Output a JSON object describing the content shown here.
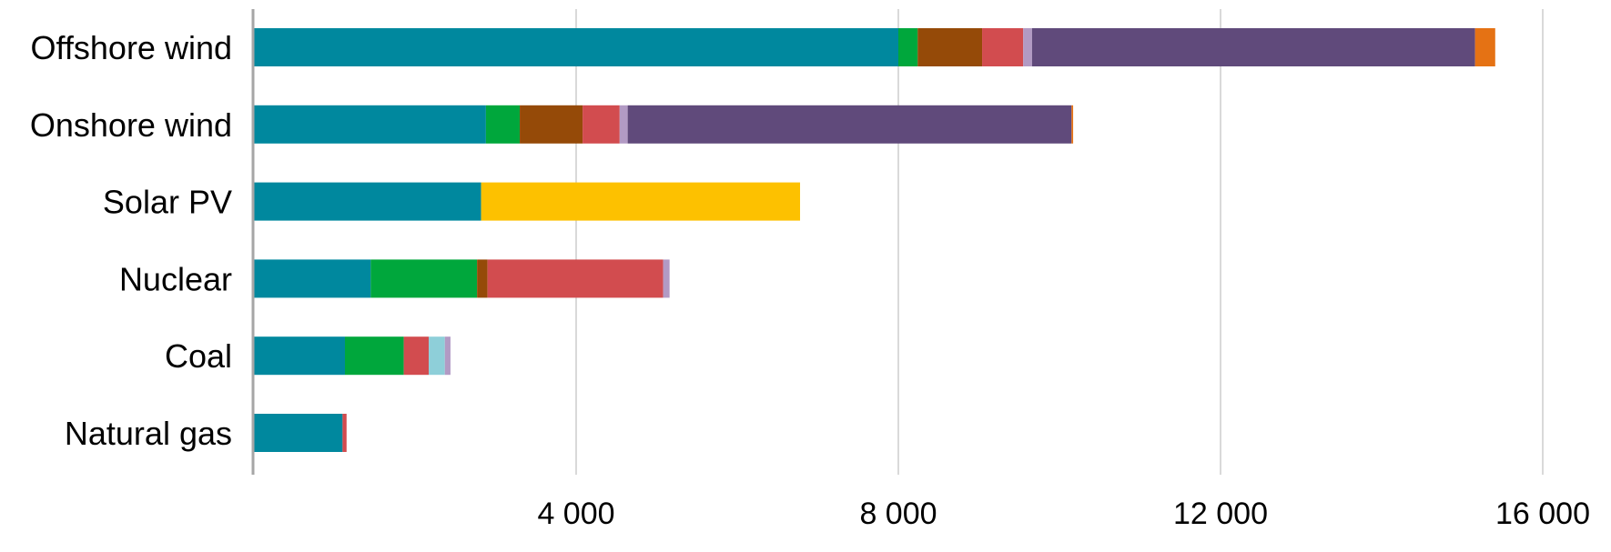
{
  "chart_data": {
    "type": "bar",
    "orientation": "horizontal",
    "stacked": true,
    "categories": [
      "Offshore wind",
      "Onshore wind",
      "Solar PV",
      "Nuclear",
      "Coal",
      "Natural gas"
    ],
    "series": [
      {
        "color": "#00889E",
        "values": [
          8000,
          2880,
          2820,
          1450,
          1130,
          1100
        ]
      },
      {
        "color": "#00A73C",
        "values": [
          240,
          420,
          0,
          1320,
          730,
          0
        ]
      },
      {
        "color": "#954A08",
        "values": [
          800,
          780,
          0,
          130,
          0,
          0
        ]
      },
      {
        "color": "#D24C4F",
        "values": [
          510,
          460,
          0,
          2180,
          310,
          50
        ]
      },
      {
        "color": "#8ECFD9",
        "values": [
          0,
          0,
          0,
          0,
          200,
          0
        ]
      },
      {
        "color": "#B29AC4",
        "values": [
          110,
          100,
          0,
          80,
          70,
          0
        ]
      },
      {
        "color": "#604A7B",
        "values": [
          5500,
          5510,
          0,
          0,
          0,
          0
        ]
      },
      {
        "color": "#E57214",
        "values": [
          250,
          20,
          0,
          0,
          0,
          0
        ]
      },
      {
        "color": "#FDC100",
        "values": [
          0,
          0,
          3960,
          0,
          0,
          0
        ]
      }
    ],
    "x_ticks": [
      4000,
      8000,
      12000,
      16000
    ],
    "x_tick_labels": [
      "4 000",
      "8 000",
      "12 000",
      "16 000"
    ],
    "xlim": [
      0,
      16600
    ],
    "grid": "vertical",
    "legend": "none",
    "title": "",
    "xlabel": "",
    "ylabel": ""
  },
  "colors": {
    "gridline": "#D9D9D9",
    "axis": "#A6A6A6"
  }
}
